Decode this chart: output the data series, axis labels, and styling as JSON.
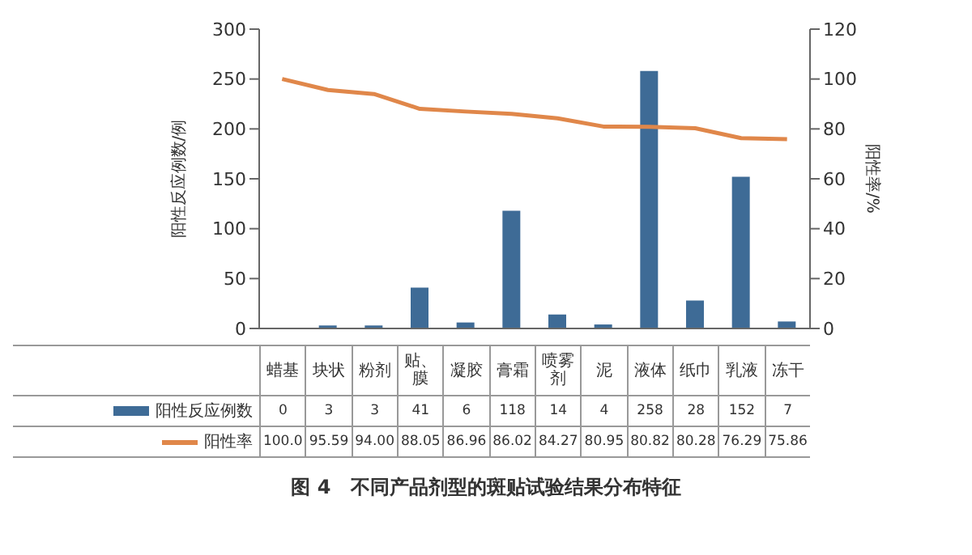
{
  "chart_data": {
    "type": "bar",
    "title": "图 4　不同产品剂型的斑贴试验结果分布特征",
    "categories": [
      "蜡基",
      "块状",
      "粉剂",
      "贴、膜",
      "凝胶",
      "膏霜",
      "喷雾剂",
      "泥",
      "液体",
      "纸巾",
      "乳液",
      "冻干"
    ],
    "series": [
      {
        "name": "阳性反应例数",
        "color": "#3e6b96",
        "values": [
          0,
          3,
          3,
          41,
          6,
          118,
          14,
          4,
          258,
          28,
          152,
          7
        ],
        "value_labels": [
          "0",
          "3",
          "3",
          "41",
          "6",
          "118",
          "14",
          "4",
          "258",
          "28",
          "152",
          "7"
        ]
      },
      {
        "name": "阳性率",
        "type": "line",
        "axis": "y2",
        "color": "#e0874a",
        "values": [
          100.0,
          95.59,
          94.0,
          88.05,
          86.96,
          86.02,
          84.27,
          80.95,
          80.82,
          80.28,
          76.29,
          75.86
        ],
        "value_labels": [
          "100.0",
          "95.59",
          "94.00",
          "88.05",
          "86.96",
          "86.02",
          "84.27",
          "80.95",
          "80.82",
          "80.28",
          "76.29",
          "75.86"
        ]
      }
    ],
    "ylabel": "阳性反应例数/例",
    "y2label": "阳性率/%",
    "ylim": [
      0,
      300
    ],
    "yticks": [
      0,
      50,
      100,
      150,
      200,
      250,
      300
    ],
    "y2lim": [
      0,
      120
    ],
    "y2ticks": [
      0,
      20,
      40,
      60,
      80,
      100,
      120
    ],
    "legend": "bottom left",
    "marker": "none",
    "line_style": "solid"
  }
}
